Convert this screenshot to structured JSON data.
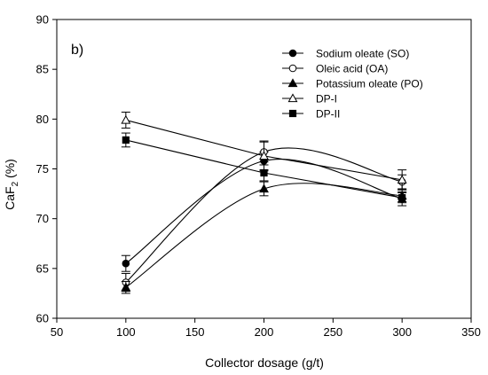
{
  "chart_data": {
    "type": "line",
    "panel_label": "b)",
    "xlabel": "Collector dosage (g/t)",
    "ylabel": "CaF2 (%)",
    "ylabel_main": "CaF",
    "ylabel_sub": "2",
    "ylabel_rest": " (%)",
    "xlim": [
      50,
      350
    ],
    "ylim": [
      60,
      90
    ],
    "x_ticks": [
      "50",
      "100",
      "150",
      "200",
      "250",
      "300",
      "350"
    ],
    "y_ticks": [
      "60",
      "65",
      "70",
      "75",
      "80",
      "85",
      "90"
    ],
    "x": [
      100,
      200,
      300
    ],
    "legend_position": "top-right",
    "grid": false,
    "series": [
      {
        "name": "Sodium oleate (SO)",
        "marker": "circle-filled",
        "values": [
          65.5,
          75.8,
          72.0
        ],
        "errors": [
          0.8,
          0.9,
          0.7
        ],
        "curve": "smooth"
      },
      {
        "name": "Oleic acid (OA)",
        "marker": "circle-open",
        "values": [
          63.6,
          76.7,
          73.7
        ],
        "errors": [
          0.9,
          1.0,
          0.7
        ],
        "curve": "smooth"
      },
      {
        "name": "Potassium oleate (PO)",
        "marker": "triangle-filled",
        "values": [
          63.1,
          73.0,
          72.3
        ],
        "errors": [
          0.6,
          0.7,
          0.6
        ],
        "curve": "smooth"
      },
      {
        "name": "DP-I",
        "marker": "triangle-open",
        "values": [
          79.9,
          76.3,
          73.9
        ],
        "errors": [
          0.8,
          1.5,
          1.0
        ],
        "curve": "straight"
      },
      {
        "name": "DP-II",
        "marker": "square-filled",
        "values": [
          77.9,
          74.6,
          72.1
        ],
        "errors": [
          0.7,
          0.8,
          0.5
        ],
        "curve": "straight"
      }
    ]
  }
}
